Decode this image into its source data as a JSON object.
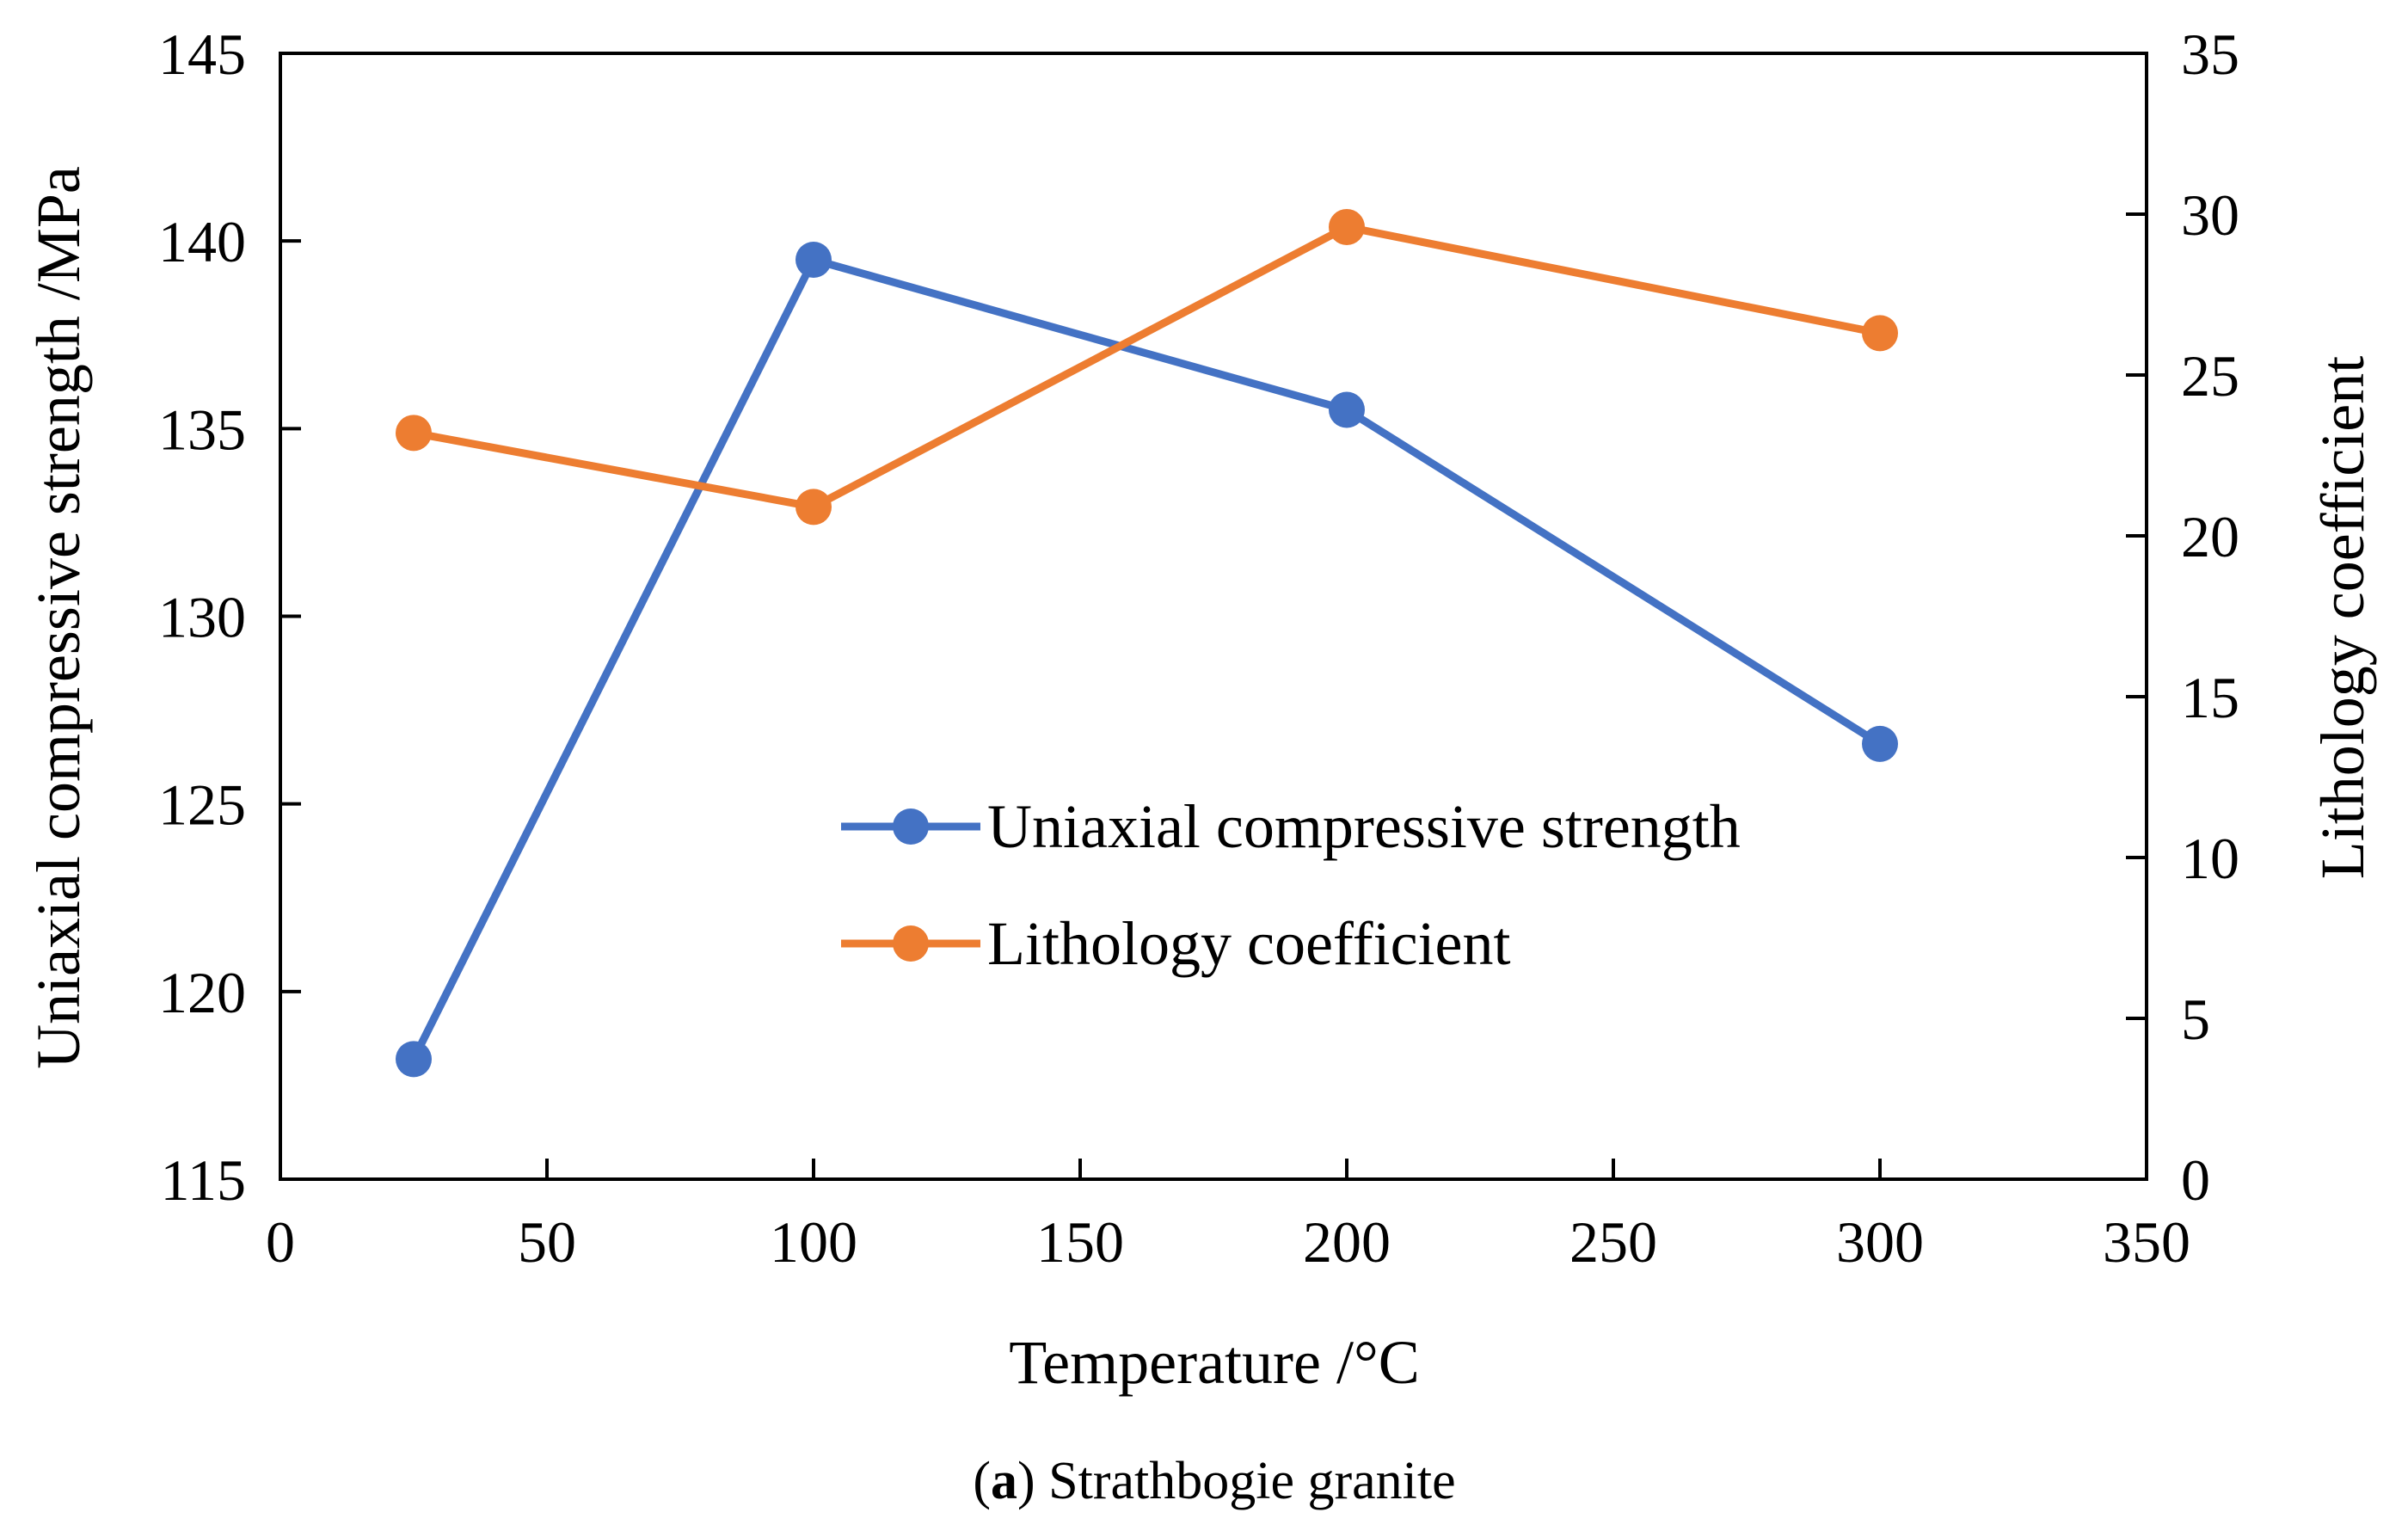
{
  "chart_data": {
    "type": "line",
    "caption": {
      "prefix": "(",
      "letter": "a",
      "rest": ") Strathbogie granite"
    },
    "xlabel": "Temperature /°C",
    "ylabel_left": "Uniaxial compressive strength /MPa",
    "ylabel_right": "Lithology coefficient",
    "xlim": [
      0,
      350
    ],
    "xticks": [
      0,
      50,
      100,
      150,
      200,
      250,
      300,
      350
    ],
    "ylim_left": [
      115,
      145
    ],
    "yticks_left": [
      115,
      120,
      125,
      130,
      135,
      140,
      145
    ],
    "ylim_right": [
      0,
      35
    ],
    "yticks_right": [
      0,
      5,
      10,
      15,
      20,
      25,
      30,
      35
    ],
    "grid": false,
    "legend_position": "center",
    "series": [
      {
        "name": "Uniaxial compressive strength",
        "axis": "left",
        "color": "#4472C4",
        "x": [
          25,
          100,
          200,
          300
        ],
        "values": [
          118.2,
          139.5,
          135.5,
          126.6
        ]
      },
      {
        "name": "Lithology coefficient",
        "axis": "right",
        "color": "#ED7D31",
        "x": [
          25,
          100,
          200,
          300
        ],
        "values": [
          23.2,
          20.9,
          29.6,
          26.3
        ]
      }
    ]
  }
}
